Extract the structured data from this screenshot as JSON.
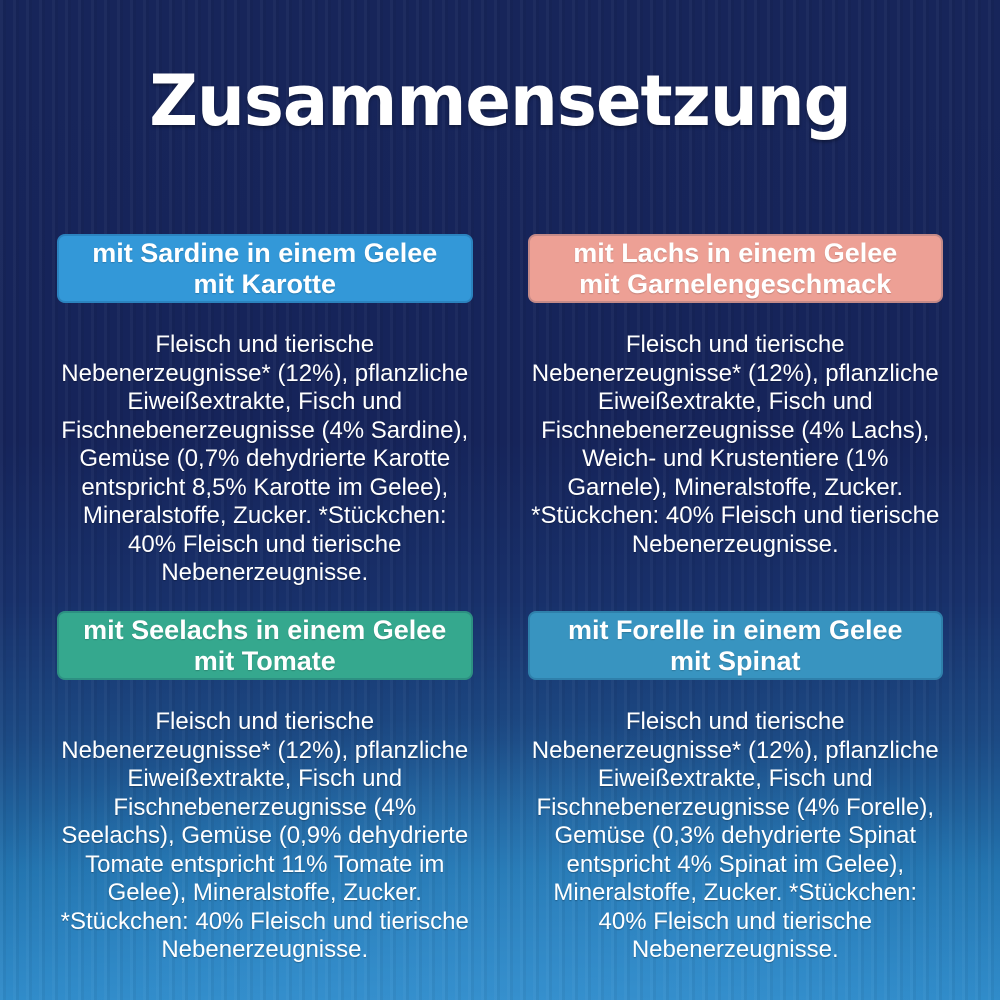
{
  "page": {
    "title": "Zusammensetzung"
  },
  "colors": {
    "background_top": "#17255a",
    "background_bottom": "#2e8ac8",
    "text": "#ffffff",
    "header_blue": "#3398d8",
    "header_salmon": "#eda095",
    "header_teal": "#35a88e",
    "header_steel_blue": "#3894c0"
  },
  "sections": [
    {
      "id": "sardine-karotte",
      "header_line1": "mit Sardine in einem Gelee",
      "header_line2": "mit Karotte",
      "header_color": "#3398d8",
      "body": "Fleisch und tierische Nebenerzeugnisse* (12%), pflanzliche Eiweißextrakte, Fisch und Fischnebenerzeugnisse (4% Sardine), Gemüse (0,7% dehydrierte Karotte entspricht 8,5% Karotte im Gelee), Mineralstoffe, Zucker. *Stückchen: 40% Fleisch und tierische Nebenerzeugnisse."
    },
    {
      "id": "lachs-garnelengeschmack",
      "header_line1": "mit Lachs in einem Gelee",
      "header_line2": "mit Garnelengeschmack",
      "header_color": "#eda095",
      "body": "Fleisch und tierische Nebenerzeugnisse* (12%), pflanzliche Eiweißextrakte, Fisch und Fischnebenerzeugnisse (4% Lachs), Weich- und Krustentiere (1% Garnele), Mineralstoffe, Zucker. *Stückchen: 40% Fleisch und tierische Nebenerzeugnisse."
    },
    {
      "id": "seelachs-tomate",
      "header_line1": "mit Seelachs in einem Gelee",
      "header_line2": "mit Tomate",
      "header_color": "#35a88e",
      "body": "Fleisch und tierische Nebenerzeugnisse* (12%), pflanzliche Eiweißextrakte, Fisch und Fischnebenerzeugnisse (4% Seelachs), Gemüse (0,9% dehydrierte Tomate entspricht 11% Tomate im Gelee), Mineralstoffe, Zucker. *Stückchen: 40% Fleisch und tierische Nebenerzeugnisse."
    },
    {
      "id": "forelle-spinat",
      "header_line1": "mit Forelle in einem Gelee",
      "header_line2": "mit Spinat",
      "header_color": "#3894c0",
      "body": "Fleisch und tierische Nebenerzeugnisse* (12%), pflanzliche Eiweißextrakte, Fisch und Fischnebenerzeugnisse (4% Forelle), Gemüse (0,3% dehydrierte Spinat entspricht 4% Spinat im Gelee), Mineralstoffe, Zucker. *Stückchen: 40% Fleisch und tierische Nebenerzeugnisse."
    }
  ]
}
